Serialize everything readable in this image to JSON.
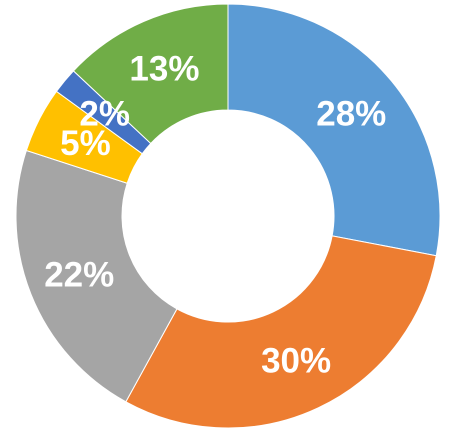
{
  "chart_data": {
    "type": "pie",
    "title": "",
    "donut": true,
    "grid": false,
    "legend": "none",
    "slices": [
      {
        "value": 28,
        "label": "28%",
        "color": "#5b9bd5"
      },
      {
        "value": 30,
        "label": "30%",
        "color": "#ed7d31"
      },
      {
        "value": 22,
        "label": "22%",
        "color": "#a5a5a5"
      },
      {
        "value": 5,
        "label": "5%",
        "color": "#ffc000"
      },
      {
        "value": 2,
        "label": "2%",
        "color": "#4472c4"
      },
      {
        "value": 13,
        "label": "13%",
        "color": "#70ad47"
      }
    ]
  }
}
